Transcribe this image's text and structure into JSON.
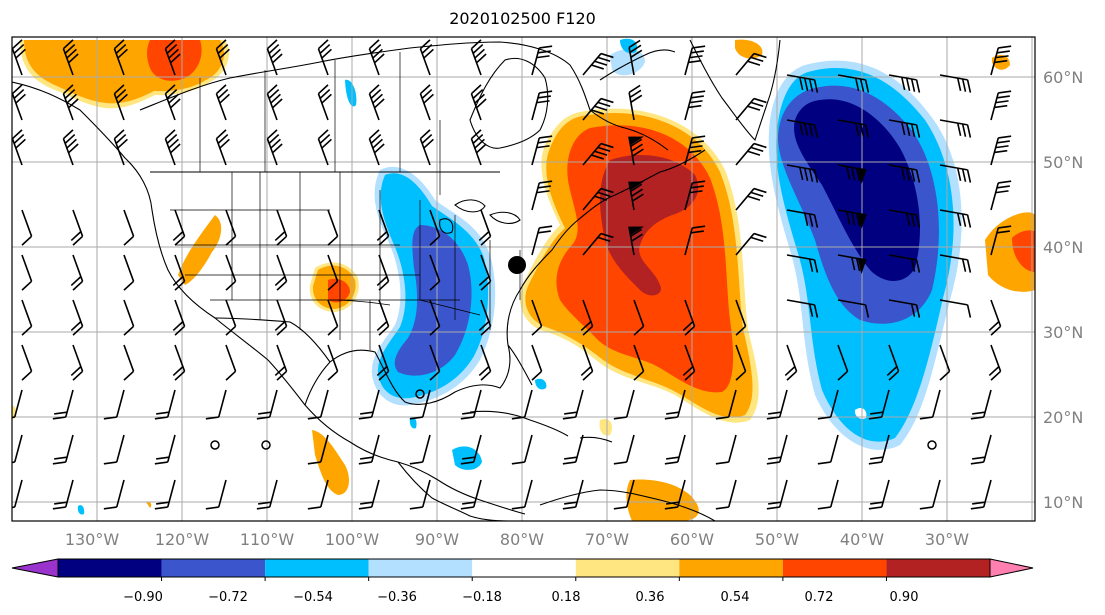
{
  "title": "2020102500 F120",
  "map": {
    "lon_labels": [
      "130°W",
      "120°W",
      "110°W",
      "100°W",
      "90°W",
      "80°W",
      "70°W",
      "60°W",
      "50°W",
      "40°W",
      "30°W"
    ],
    "lat_labels": [
      "60°N",
      "50°N",
      "40°N",
      "30°N",
      "20°N",
      "10°N"
    ]
  },
  "colorbar": {
    "labels": [
      "−0.90",
      "−0.72",
      "−0.54",
      "−0.36",
      "−0.18",
      "0.18",
      "0.36",
      "0.54",
      "0.72",
      "0.90"
    ],
    "colors": [
      "#9933cc",
      "#000080",
      "#3b55cc",
      "#00bfff",
      "#b3e0ff",
      "#ffffff",
      "#ffe680",
      "#ffa500",
      "#ff4500",
      "#b22222",
      "#ff80b0"
    ]
  },
  "colors": {
    "land_outline": "#000000",
    "grid": "#aaaaaa",
    "frame": "#000000"
  }
}
